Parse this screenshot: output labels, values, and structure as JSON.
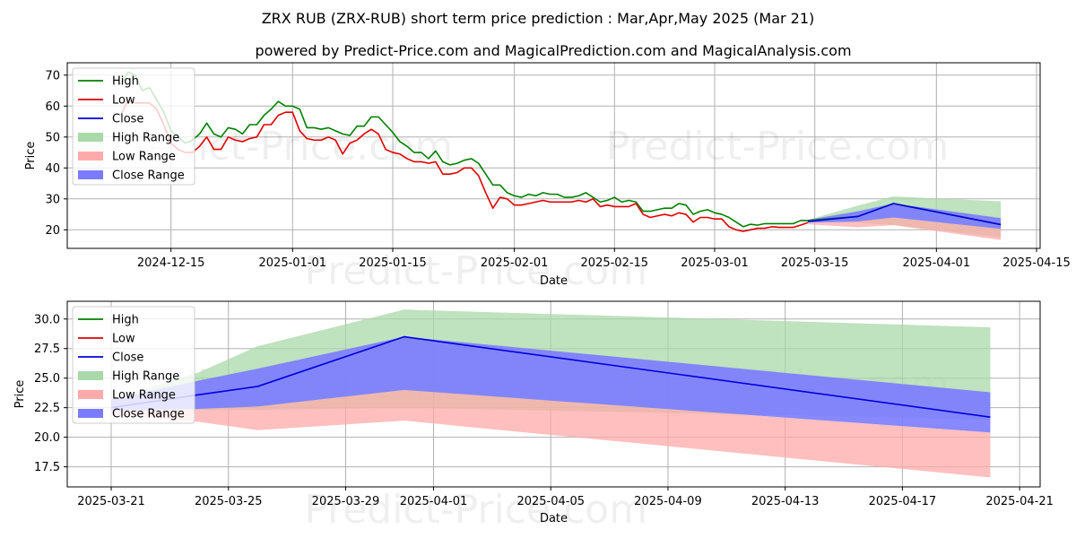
{
  "title": "ZRX RUB (ZRX-RUB) short term price prediction : Mar,Apr,May 2025 (Mar 21)",
  "subtitle": "powered by Predict-Price.com and MagicalPrediction.com and MagicalAnalysis.com",
  "watermark": "Predict-Price.com",
  "colors": {
    "high": "#008000",
    "low": "#e00000",
    "close": "#0000dd",
    "high_range": "#a9d8a9",
    "low_range": "#ffaaaa",
    "close_range": "#7b7bff"
  },
  "chart_data": [
    {
      "type": "line",
      "name": "top",
      "xlabel": "Date",
      "ylabel": "Price",
      "ylim": [
        14,
        74
      ],
      "yticks": [
        20,
        30,
        40,
        50,
        60,
        70
      ],
      "xticks": [
        "2024-12-15",
        "2025-01-01",
        "2025-01-15",
        "2025-02-01",
        "2025-02-15",
        "2025-03-01",
        "2025-03-15",
        "2025-04-01",
        "2025-04-15"
      ],
      "legend": [
        "High",
        "Low",
        "Close",
        "High Range",
        "Low Range",
        "Close Range"
      ],
      "legend_position": "upper-left",
      "xdomain": [
        "2024-12-07",
        "2025-04-22"
      ],
      "high": [
        [
          0,
          67
        ],
        [
          1,
          71
        ],
        [
          2,
          70
        ],
        [
          3,
          65
        ],
        [
          4,
          66
        ],
        [
          5,
          62
        ],
        [
          6,
          58
        ],
        [
          7,
          52
        ],
        [
          8,
          50
        ],
        [
          9,
          48
        ],
        [
          10,
          49
        ],
        [
          11,
          51
        ],
        [
          12,
          54.5
        ],
        [
          13,
          51
        ],
        [
          14,
          50
        ],
        [
          15,
          53
        ],
        [
          16,
          52.5
        ],
        [
          17,
          51
        ],
        [
          18,
          54
        ],
        [
          19,
          54
        ],
        [
          20,
          57
        ],
        [
          21,
          59
        ],
        [
          22,
          61.5
        ],
        [
          23,
          60
        ],
        [
          24,
          60
        ],
        [
          25,
          59
        ],
        [
          26,
          53
        ],
        [
          27,
          53
        ],
        [
          28,
          52.5
        ],
        [
          29,
          53
        ],
        [
          30,
          52
        ],
        [
          31,
          51
        ],
        [
          32,
          50.5
        ],
        [
          33,
          53.5
        ],
        [
          34,
          53.5
        ],
        [
          35,
          56.5
        ],
        [
          36,
          56.5
        ],
        [
          37,
          54
        ],
        [
          38,
          51.5
        ],
        [
          39,
          48.5
        ],
        [
          40,
          47
        ],
        [
          41,
          45
        ],
        [
          42,
          45
        ],
        [
          43,
          43
        ],
        [
          44,
          45.5
        ],
        [
          45,
          42
        ],
        [
          46,
          41
        ],
        [
          47,
          41.5
        ],
        [
          48,
          42.5
        ],
        [
          49,
          43
        ],
        [
          50,
          41.5
        ],
        [
          51,
          38
        ],
        [
          52,
          34.5
        ],
        [
          53,
          34.5
        ],
        [
          54,
          32
        ],
        [
          55,
          31
        ],
        [
          56,
          30.5
        ],
        [
          57,
          31.5
        ],
        [
          58,
          31
        ],
        [
          59,
          32
        ],
        [
          60,
          31.5
        ],
        [
          61,
          31.5
        ],
        [
          62,
          30.5
        ],
        [
          63,
          30.5
        ],
        [
          64,
          31
        ],
        [
          65,
          32
        ],
        [
          66,
          30.5
        ],
        [
          67,
          29
        ],
        [
          68,
          29.5
        ],
        [
          69,
          30.5
        ],
        [
          70,
          29
        ],
        [
          71,
          29.5
        ],
        [
          72,
          29
        ],
        [
          73,
          26
        ],
        [
          74,
          26
        ],
        [
          75,
          26.5
        ],
        [
          76,
          27
        ],
        [
          77,
          27
        ],
        [
          78,
          28.5
        ],
        [
          79,
          28
        ],
        [
          80,
          25
        ],
        [
          81,
          26
        ],
        [
          82,
          26.5
        ],
        [
          83,
          25.5
        ],
        [
          84,
          25
        ],
        [
          85,
          24
        ],
        [
          86,
          22.5
        ],
        [
          87,
          21
        ],
        [
          88,
          21.8
        ],
        [
          89,
          21.5
        ],
        [
          90,
          22
        ],
        [
          91,
          22
        ],
        [
          92,
          22
        ],
        [
          93,
          22
        ],
        [
          94,
          22
        ],
        [
          95,
          23
        ],
        [
          96,
          23
        ],
        [
          103,
          24.3
        ],
        [
          108,
          28.5
        ],
        [
          123,
          21.7
        ]
      ],
      "low": [
        [
          0,
          57
        ],
        [
          1,
          62
        ],
        [
          2,
          61
        ],
        [
          3,
          61
        ],
        [
          4,
          61
        ],
        [
          5,
          59
        ],
        [
          6,
          54
        ],
        [
          7,
          48
        ],
        [
          8,
          46
        ],
        [
          9,
          45
        ],
        [
          10,
          45
        ],
        [
          11,
          47
        ],
        [
          12,
          50
        ],
        [
          13,
          46
        ],
        [
          14,
          46
        ],
        [
          15,
          50
        ],
        [
          16,
          49
        ],
        [
          17,
          48.5
        ],
        [
          18,
          49.5
        ],
        [
          19,
          50
        ],
        [
          20,
          54
        ],
        [
          21,
          54
        ],
        [
          22,
          57
        ],
        [
          23,
          58
        ],
        [
          24,
          58
        ],
        [
          25,
          52
        ],
        [
          26,
          49.5
        ],
        [
          27,
          49
        ],
        [
          28,
          49
        ],
        [
          29,
          50
        ],
        [
          30,
          49
        ],
        [
          31,
          44.5
        ],
        [
          32,
          48
        ],
        [
          33,
          49
        ],
        [
          34,
          51
        ],
        [
          35,
          52.5
        ],
        [
          36,
          51
        ],
        [
          37,
          46
        ],
        [
          38,
          45
        ],
        [
          39,
          44.5
        ],
        [
          40,
          43
        ],
        [
          41,
          42
        ],
        [
          42,
          42
        ],
        [
          43,
          41.5
        ],
        [
          44,
          42
        ],
        [
          45,
          38
        ],
        [
          46,
          38
        ],
        [
          47,
          38.5
        ],
        [
          48,
          40
        ],
        [
          49,
          40
        ],
        [
          50,
          37.5
        ],
        [
          51,
          32
        ],
        [
          52,
          27
        ],
        [
          53,
          30.5
        ],
        [
          54,
          30
        ],
        [
          55,
          28
        ],
        [
          56,
          28
        ],
        [
          57,
          28.5
        ],
        [
          58,
          29
        ],
        [
          59,
          29.5
        ],
        [
          60,
          29
        ],
        [
          61,
          29
        ],
        [
          62,
          29
        ],
        [
          63,
          29
        ],
        [
          64,
          29.5
        ],
        [
          65,
          29
        ],
        [
          66,
          30
        ],
        [
          67,
          27.5
        ],
        [
          68,
          28
        ],
        [
          69,
          27.5
        ],
        [
          70,
          27.5
        ],
        [
          71,
          27.5
        ],
        [
          72,
          28.5
        ],
        [
          73,
          25
        ],
        [
          74,
          24
        ],
        [
          75,
          24.5
        ],
        [
          76,
          25
        ],
        [
          77,
          24.5
        ],
        [
          78,
          25.5
        ],
        [
          79,
          25
        ],
        [
          80,
          22.5
        ],
        [
          81,
          24
        ],
        [
          82,
          24
        ],
        [
          83,
          23.5
        ],
        [
          84,
          23.5
        ],
        [
          85,
          21
        ],
        [
          86,
          20
        ],
        [
          87,
          19.5
        ],
        [
          88,
          20
        ],
        [
          89,
          20.5
        ],
        [
          90,
          20.5
        ],
        [
          91,
          21
        ],
        [
          92,
          20.8
        ],
        [
          93,
          20.8
        ],
        [
          94,
          20.8
        ],
        [
          95,
          21.5
        ],
        [
          96,
          22.3
        ]
      ],
      "close": [
        [
          96,
          22.7
        ],
        [
          103,
          24.3
        ],
        [
          108,
          28.5
        ],
        [
          123,
          21.7
        ]
      ],
      "high_range": [
        [
          96,
          23.2,
          22.8
        ],
        [
          103,
          27.8,
          22.3
        ],
        [
          108,
          30.8,
          21.5
        ],
        [
          123,
          29.2,
          17.5
        ]
      ],
      "low_range": [
        [
          96,
          22.3,
          21.8
        ],
        [
          103,
          22.8,
          20.8
        ],
        [
          108,
          24,
          21.5
        ],
        [
          123,
          20.3,
          16.7
        ]
      ],
      "close_range": [
        [
          96,
          23.2,
          22.3
        ],
        [
          103,
          26,
          22.7
        ],
        [
          108,
          28.5,
          24
        ],
        [
          123,
          23.8,
          20.3
        ]
      ]
    },
    {
      "type": "line",
      "name": "bottom",
      "xlabel": "Date",
      "ylabel": "Price",
      "ylim": [
        15.8,
        31.5
      ],
      "yticks": [
        "17.5",
        "20.0",
        "22.5",
        "25.0",
        "27.5",
        "30.0"
      ],
      "xticks": [
        "2025-03-21",
        "2025-03-25",
        "2025-03-29",
        "2025-04-01",
        "2025-04-05",
        "2025-04-09",
        "2025-04-13",
        "2025-04-17",
        "2025-04-21"
      ],
      "legend": [
        "High",
        "Low",
        "Close",
        "High Range",
        "Low Range",
        "Close Range"
      ],
      "legend_position": "upper-left",
      "xdomain": [
        "2025-03-19.5",
        "2025-04-21.7"
      ],
      "close": [
        [
          0,
          22.5
        ],
        [
          3,
          23.6
        ],
        [
          5,
          24.3
        ],
        [
          10,
          28.5
        ],
        [
          30,
          21.7
        ]
      ],
      "high_range": [
        [
          0,
          23.2,
          22.8
        ],
        [
          3,
          25.5,
          22.3
        ],
        [
          5,
          27.7,
          22.3
        ],
        [
          10,
          30.8,
          22.5
        ],
        [
          30,
          29.3,
          21.5
        ]
      ],
      "low_range": [
        [
          0,
          22.3,
          21.9
        ],
        [
          3,
          22.4,
          21.3
        ],
        [
          5,
          22.6,
          20.6
        ],
        [
          10,
          24,
          21.4
        ],
        [
          30,
          20.4,
          16.6
        ]
      ],
      "close_range": [
        [
          0,
          23.2,
          22.2
        ],
        [
          3,
          24.8,
          22.4
        ],
        [
          5,
          25.8,
          22.6
        ],
        [
          10,
          28.5,
          24
        ],
        [
          30,
          23.8,
          20.4
        ]
      ]
    }
  ]
}
